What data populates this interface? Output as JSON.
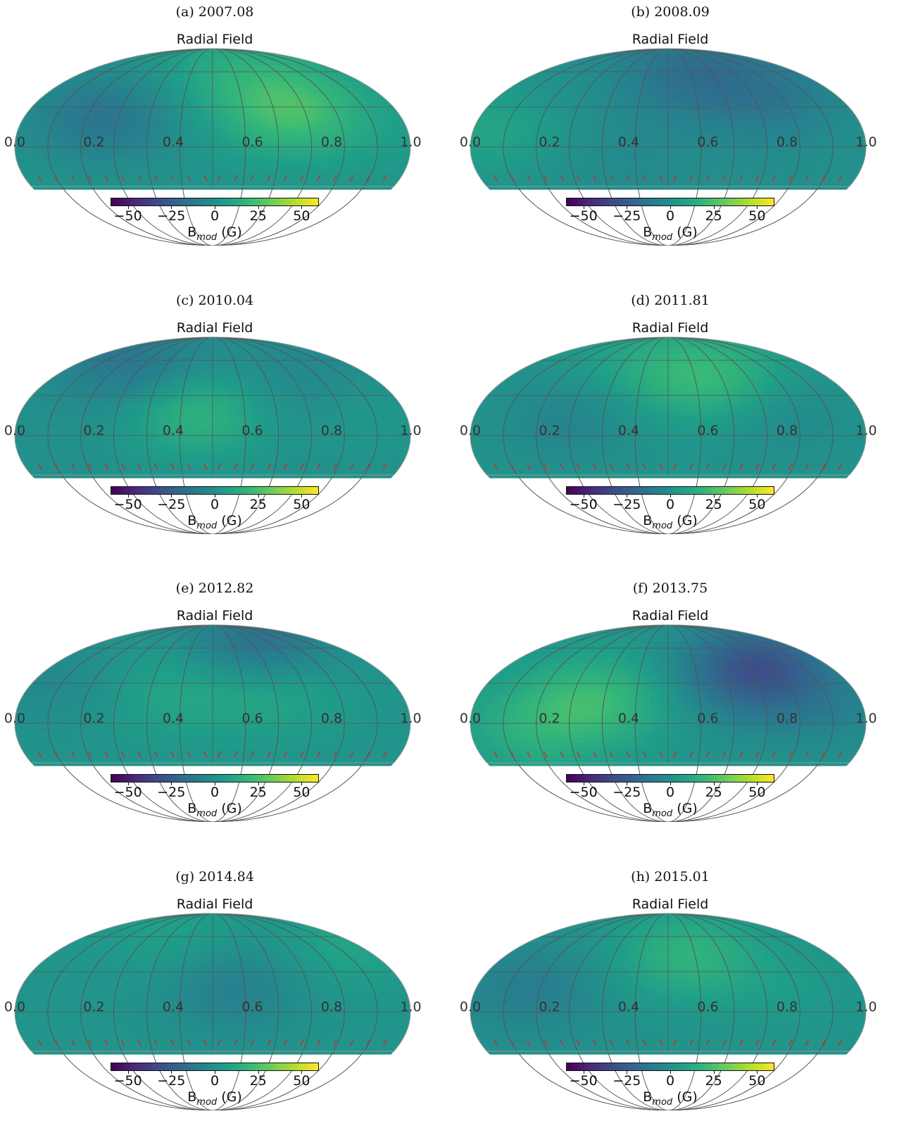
{
  "chart_data": [
    {
      "type": "heatmap",
      "panel_label": "(a) 2007.08",
      "title": "Radial Field",
      "x_ticks": [
        "0.0",
        "0.2",
        "0.4",
        "0.6",
        "0.8",
        "1.0"
      ],
      "colorbar": {
        "ticks": [
          "−50",
          "−25",
          "0",
          "25",
          "50"
        ],
        "label_main": "B",
        "label_sub": "mod",
        "label_unit": " (G)",
        "vmin": -60,
        "vmax": 60,
        "colormap": "viridis"
      },
      "blobs": [
        {
          "x": 0.7,
          "y": 0.45,
          "value": 22
        },
        {
          "x": 0.22,
          "y": 0.5,
          "value": -15
        },
        {
          "x": 0.55,
          "y": 0.15,
          "value": 10
        },
        {
          "x": 0.95,
          "y": 0.6,
          "value": 3
        }
      ],
      "base_value": 2
    },
    {
      "type": "heatmap",
      "panel_label": "(b) 2008.09",
      "title": "Radial Field",
      "x_ticks": [
        "0.0",
        "0.2",
        "0.4",
        "0.6",
        "0.8",
        "1.0"
      ],
      "colorbar": {
        "ticks": [
          "−50",
          "−25",
          "0",
          "25",
          "50"
        ],
        "label_main": "B",
        "label_sub": "mod",
        "label_unit": " (G)",
        "vmin": -60,
        "vmax": 60,
        "colormap": "viridis"
      },
      "blobs": [
        {
          "x": 0.55,
          "y": 0.15,
          "value": -15
        },
        {
          "x": 0.75,
          "y": 0.35,
          "value": -12
        },
        {
          "x": 0.05,
          "y": 0.6,
          "value": 10
        },
        {
          "x": 0.4,
          "y": 0.75,
          "value": -3
        }
      ],
      "base_value": 0
    },
    {
      "type": "heatmap",
      "panel_label": "(c) 2010.04",
      "title": "Radial Field",
      "x_ticks": [
        "0.0",
        "0.2",
        "0.4",
        "0.6",
        "0.8",
        "1.0"
      ],
      "colorbar": {
        "ticks": [
          "−50",
          "−25",
          "0",
          "25",
          "50"
        ],
        "label_main": "B",
        "label_sub": "mod",
        "label_unit": " (G)",
        "vmin": -60,
        "vmax": 60,
        "colormap": "viridis"
      },
      "blobs": [
        {
          "x": 0.46,
          "y": 0.55,
          "value": 18
        },
        {
          "x": 0.3,
          "y": 0.2,
          "value": -14
        },
        {
          "x": 0.7,
          "y": 0.3,
          "value": -5
        },
        {
          "x": 0.9,
          "y": 0.6,
          "value": 4
        }
      ],
      "base_value": 0
    },
    {
      "type": "heatmap",
      "panel_label": "(d) 2011.81",
      "title": "Radial Field",
      "x_ticks": [
        "0.0",
        "0.2",
        "0.4",
        "0.6",
        "0.8",
        "1.0"
      ],
      "colorbar": {
        "ticks": [
          "−50",
          "−25",
          "0",
          "25",
          "50"
        ],
        "label_main": "B",
        "label_sub": "mod",
        "label_unit": " (G)",
        "vmin": -60,
        "vmax": 60,
        "colormap": "viridis"
      },
      "blobs": [
        {
          "x": 0.6,
          "y": 0.28,
          "value": 18
        },
        {
          "x": 0.25,
          "y": 0.6,
          "value": -8
        },
        {
          "x": 0.8,
          "y": 0.6,
          "value": -5
        },
        {
          "x": 0.4,
          "y": 0.2,
          "value": 6
        }
      ],
      "base_value": 2
    },
    {
      "type": "heatmap",
      "panel_label": "(e) 2012.82",
      "title": "Radial Field",
      "x_ticks": [
        "0.0",
        "0.2",
        "0.4",
        "0.6",
        "0.8",
        "1.0"
      ],
      "colorbar": {
        "ticks": [
          "−50",
          "−25",
          "0",
          "25",
          "50"
        ],
        "label_main": "B",
        "label_sub": "mod",
        "label_unit": " (G)",
        "vmin": -60,
        "vmax": 60,
        "colormap": "viridis"
      },
      "blobs": [
        {
          "x": 0.62,
          "y": 0.12,
          "value": -18
        },
        {
          "x": 0.4,
          "y": 0.5,
          "value": 8
        },
        {
          "x": 0.65,
          "y": 0.5,
          "value": 9
        },
        {
          "x": 0.1,
          "y": 0.4,
          "value": -6
        }
      ],
      "base_value": 2
    },
    {
      "type": "heatmap",
      "panel_label": "(f) 2013.75",
      "title": "Radial Field",
      "x_ticks": [
        "0.0",
        "0.2",
        "0.4",
        "0.6",
        "0.8",
        "1.0"
      ],
      "colorbar": {
        "ticks": [
          "−50",
          "−25",
          "0",
          "25",
          "50"
        ],
        "label_main": "B",
        "label_sub": "mod",
        "label_unit": " (G)",
        "vmin": -60,
        "vmax": 60,
        "colormap": "viridis"
      },
      "blobs": [
        {
          "x": 0.72,
          "y": 0.32,
          "value": -32
        },
        {
          "x": 0.32,
          "y": 0.55,
          "value": 18
        },
        {
          "x": 0.15,
          "y": 0.75,
          "value": 12
        },
        {
          "x": 0.9,
          "y": 0.6,
          "value": -8
        }
      ],
      "base_value": 2
    },
    {
      "type": "heatmap",
      "panel_label": "(g) 2014.84",
      "title": "Radial Field",
      "x_ticks": [
        "0.0",
        "0.2",
        "0.4",
        "0.6",
        "0.8",
        "1.0"
      ],
      "colorbar": {
        "ticks": [
          "−50",
          "−25",
          "0",
          "25",
          "50"
        ],
        "label_main": "B",
        "label_sub": "mod",
        "label_unit": " (G)",
        "vmin": -60,
        "vmax": 60,
        "colormap": "viridis"
      },
      "blobs": [
        {
          "x": 0.55,
          "y": 0.55,
          "value": -10
        },
        {
          "x": 0.4,
          "y": 0.15,
          "value": 6
        },
        {
          "x": 0.85,
          "y": 0.2,
          "value": 8
        }
      ],
      "base_value": 2
    },
    {
      "type": "heatmap",
      "panel_label": "(h) 2015.01",
      "title": "Radial Field",
      "x_ticks": [
        "0.0",
        "0.2",
        "0.4",
        "0.6",
        "0.8",
        "1.0"
      ],
      "colorbar": {
        "ticks": [
          "−50",
          "−25",
          "0",
          "25",
          "50"
        ],
        "label_main": "B",
        "label_sub": "mod",
        "label_unit": " (G)",
        "vmin": -60,
        "vmax": 60,
        "colormap": "viridis"
      },
      "blobs": [
        {
          "x": 0.55,
          "y": 0.3,
          "value": 16
        },
        {
          "x": 0.15,
          "y": 0.55,
          "value": -10
        },
        {
          "x": 0.8,
          "y": 0.55,
          "value": 4
        }
      ],
      "base_value": 1
    }
  ]
}
